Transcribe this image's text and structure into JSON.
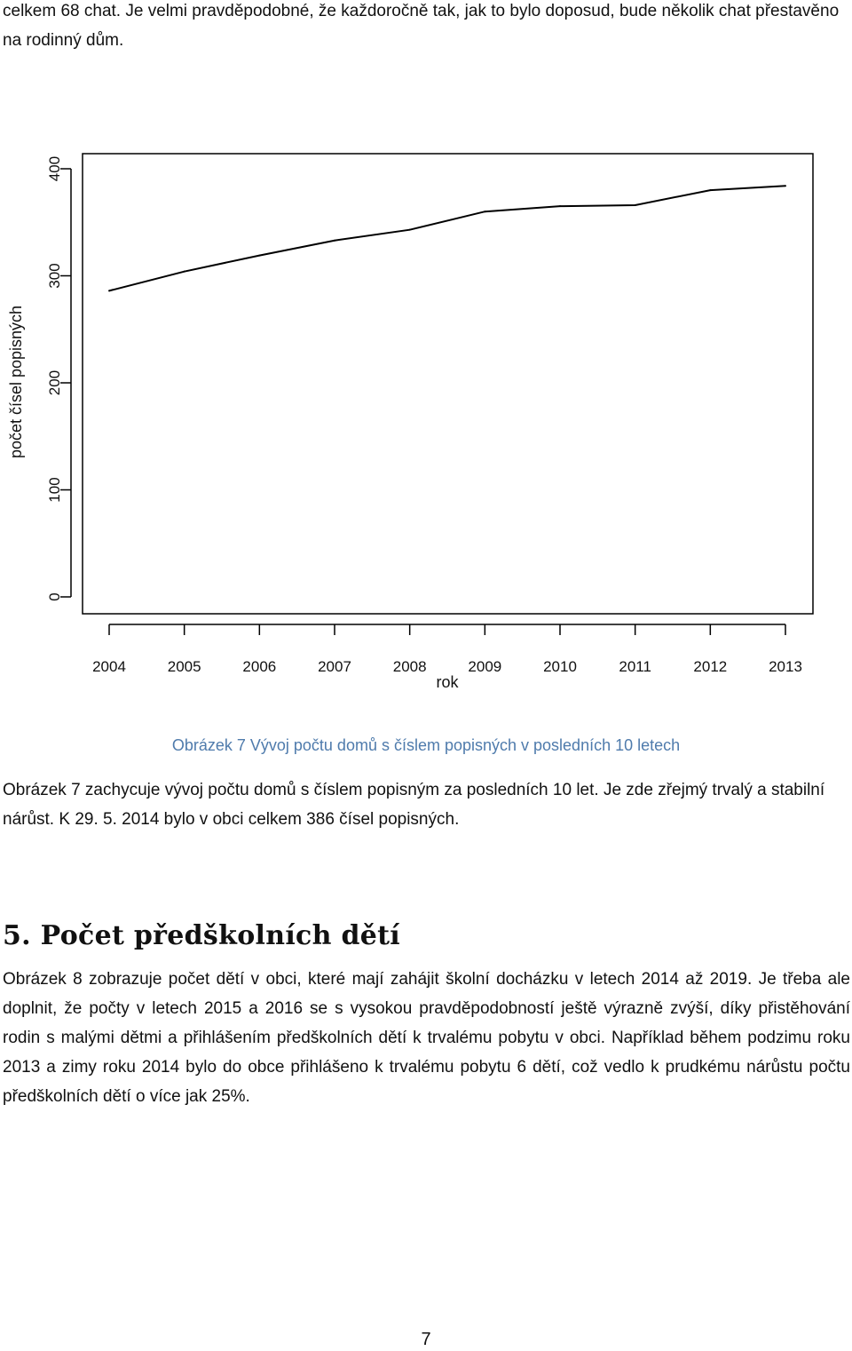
{
  "intro_text": "celkem 68 chat. Je velmi pravděpodobné, že každoročně tak, jak to bylo doposud, bude několik chat přestavěno na rodinný dům.",
  "chart_data": {
    "type": "line",
    "categories": [
      "2004",
      "2005",
      "2006",
      "2007",
      "2008",
      "2009",
      "2010",
      "2011",
      "2012",
      "2013"
    ],
    "series": [
      {
        "values": [
          286,
          304,
          319,
          333,
          343,
          360,
          365,
          366,
          380,
          384
        ]
      }
    ],
    "xlabel": "rok",
    "ylabel": "počet čísel popisných",
    "ylim": [
      0,
      400
    ],
    "yticks": [
      0,
      100,
      200,
      300,
      400
    ],
    "grid": false,
    "line_color": "#000000"
  },
  "figure_caption": "Obrázek 7 Vývoj počtu domů s číslem popisných v posledních 10 letech",
  "paragraph1": "Obrázek 7 zachycuje vývoj počtu domů s číslem popisným za posledních 10 let. Je zde zřejmý trvalý a stabilní nárůst. K 29. 5. 2014 bylo v obci celkem 386 čísel popisných.",
  "section_heading": "5. Počet předškolních dětí",
  "paragraph2": "Obrázek 8 zobrazuje počet dětí v obci, které mají zahájit školní docházku v letech 2014 až 2019. Je třeba ale doplnit, že počty v letech 2015 a 2016 se s vysokou pravděpodobností ještě výrazně zvýší, díky přistěhování rodin s malými dětmi a přihlášením předškolních dětí k trvalému pobytu v obci. Například během podzimu roku 2013 a zimy roku 2014 bylo do obce přihlášeno k trvalému pobytu 6 dětí, což vedlo k prudkému nárůstu počtu předškolních dětí o více jak 25%.",
  "page_number": "7",
  "colors": {
    "caption": "#4f7bac",
    "text": "#111111"
  }
}
